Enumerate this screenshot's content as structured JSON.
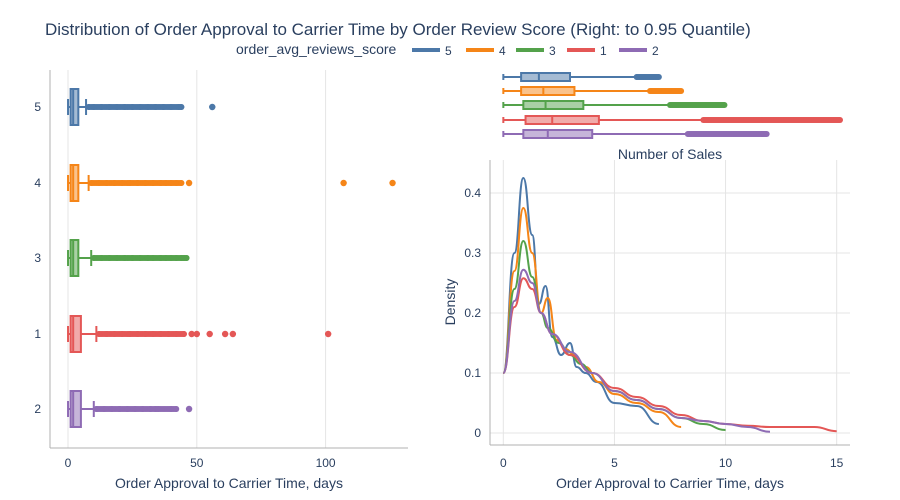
{
  "title": "Distribution of Order Approval to Carrier Time by Order Review Score (Right: to 0.95 Quantile)",
  "legend": {
    "title": "order_avg_reviews_score",
    "placement": "top-center",
    "items": [
      {
        "name": "5",
        "color": "#4c78a8"
      },
      {
        "name": "4",
        "color": "#f58518"
      },
      {
        "name": "3",
        "color": "#54a24b"
      },
      {
        "name": "1",
        "color": "#e45756"
      },
      {
        "name": "2",
        "color": "#8e6bb4"
      }
    ]
  },
  "colors": {
    "5": "#4c78a8",
    "4": "#f58518",
    "3": "#54a24b",
    "1": "#e45756",
    "2": "#8e6bb4",
    "text": "#2a3f5f",
    "grid": "#e5e5e5"
  },
  "chart_data": [
    {
      "type": "box",
      "orientation": "horizontal",
      "xlabel": "Order Approval to Carrier Time, days",
      "ylabel": "",
      "xlim": [
        -7,
        132
      ],
      "xticks": [
        0,
        50,
        100
      ],
      "categories": [
        "5",
        "4",
        "3",
        "1",
        "2"
      ],
      "grid": true,
      "series": [
        {
          "name": "5",
          "min": 0,
          "q1": 1,
          "median": 2,
          "q3": 4,
          "whisker_high": 7,
          "outliers": [
            8,
            10,
            13,
            16,
            19,
            22,
            25,
            28,
            31,
            34,
            37,
            40,
            43,
            44,
            56
          ]
        },
        {
          "name": "4",
          "min": 0,
          "q1": 1,
          "median": 2,
          "q3": 4,
          "whisker_high": 8,
          "outliers": [
            9,
            12,
            15,
            18,
            21,
            24,
            27,
            30,
            33,
            36,
            38,
            40,
            42,
            44,
            47,
            107,
            126
          ]
        },
        {
          "name": "3",
          "min": 0,
          "q1": 1,
          "median": 2,
          "q3": 4,
          "whisker_high": 9,
          "outliers": [
            10,
            13,
            16,
            19,
            22,
            25,
            28,
            31,
            33,
            36,
            38,
            40,
            42,
            44,
            45,
            46
          ]
        },
        {
          "name": "1",
          "min": 0,
          "q1": 1,
          "median": 2,
          "q3": 5,
          "whisker_high": 11,
          "outliers": [
            12,
            15,
            18,
            21,
            24,
            27,
            30,
            33,
            36,
            39,
            42,
            45,
            48,
            50,
            55,
            61,
            64,
            101
          ]
        },
        {
          "name": "2",
          "min": 0,
          "q1": 1,
          "median": 2,
          "q3": 5,
          "whisker_high": 10,
          "outliers": [
            11,
            14,
            17,
            20,
            23,
            26,
            29,
            32,
            34,
            35,
            40,
            42,
            47
          ]
        }
      ]
    },
    {
      "type": "box",
      "orientation": "horizontal",
      "xlabel": "Number of Sales",
      "xlim": [
        -0.6,
        15.6
      ],
      "categories": [
        "5",
        "4",
        "3",
        "1",
        "2"
      ],
      "series": [
        {
          "name": "5",
          "min": 0,
          "q1": 0.8,
          "median": 1.6,
          "q3": 3.0,
          "whisker_high": 6.0,
          "outliers_range": [
            6.0,
            7.0
          ]
        },
        {
          "name": "4",
          "min": 0,
          "q1": 0.8,
          "median": 1.8,
          "q3": 3.2,
          "whisker_high": 6.6,
          "outliers_range": [
            6.6,
            8.0
          ]
        },
        {
          "name": "3",
          "min": 0,
          "q1": 0.9,
          "median": 1.9,
          "q3": 3.6,
          "whisker_high": 7.5,
          "outliers_range": [
            7.5,
            10.0
          ]
        },
        {
          "name": "1",
          "min": 0,
          "q1": 1.0,
          "median": 2.2,
          "q3": 4.3,
          "whisker_high": 9.0,
          "outliers_range": [
            9.0,
            15.2
          ]
        },
        {
          "name": "2",
          "min": 0,
          "q1": 0.9,
          "median": 2.0,
          "q3": 4.0,
          "whisker_high": 8.3,
          "outliers_range": [
            8.3,
            11.9
          ]
        }
      ]
    },
    {
      "type": "line",
      "xlabel": "Order Approval to Carrier Time, days",
      "ylabel": "Density",
      "xlim": [
        -0.6,
        15.6
      ],
      "ylim": [
        -0.02,
        0.455
      ],
      "xticks": [
        0,
        5,
        10,
        15
      ],
      "yticks": [
        0,
        0.1,
        0.2,
        0.3,
        0.4
      ],
      "yticklabels": [
        "0",
        "0.1",
        "0.2",
        "0.3",
        "0.4"
      ],
      "grid": true,
      "series": [
        {
          "name": "5",
          "x": [
            0,
            0.5,
            0.9,
            1.3,
            1.6,
            1.9,
            2.2,
            2.6,
            3.0,
            3.3,
            3.7,
            4.2,
            5.0,
            6.0,
            7.0
          ],
          "y": [
            0.1,
            0.3,
            0.425,
            0.33,
            0.215,
            0.245,
            0.16,
            0.13,
            0.15,
            0.11,
            0.1,
            0.085,
            0.05,
            0.045,
            0.015
          ]
        },
        {
          "name": "4",
          "x": [
            0,
            0.5,
            0.9,
            1.3,
            1.7,
            2.0,
            2.4,
            2.8,
            3.2,
            3.7,
            4.3,
            5.0,
            6.0,
            7.0,
            8.0
          ],
          "y": [
            0.1,
            0.27,
            0.375,
            0.3,
            0.2,
            0.225,
            0.155,
            0.14,
            0.13,
            0.11,
            0.085,
            0.065,
            0.05,
            0.035,
            0.01
          ]
        },
        {
          "name": "3",
          "x": [
            0,
            0.5,
            0.9,
            1.3,
            1.7,
            2.0,
            2.5,
            3.0,
            3.5,
            4.0,
            5.0,
            6.0,
            7.0,
            8.0,
            9.0,
            10.0
          ],
          "y": [
            0.1,
            0.24,
            0.32,
            0.26,
            0.2,
            0.175,
            0.15,
            0.13,
            0.115,
            0.1,
            0.07,
            0.055,
            0.04,
            0.025,
            0.015,
            0.005
          ]
        },
        {
          "name": "1",
          "x": [
            0,
            0.5,
            0.9,
            1.3,
            1.7,
            2.2,
            3.0,
            4.0,
            5.0,
            6.0,
            7.0,
            8.0,
            9.0,
            10.0,
            11.0,
            12.0,
            13.0,
            14.0,
            15.0
          ],
          "y": [
            0.1,
            0.21,
            0.258,
            0.24,
            0.2,
            0.165,
            0.13,
            0.1,
            0.075,
            0.06,
            0.045,
            0.03,
            0.02,
            0.015,
            0.012,
            0.01,
            0.01,
            0.01,
            0.003
          ]
        },
        {
          "name": "2",
          "x": [
            0,
            0.5,
            0.9,
            1.3,
            1.7,
            2.2,
            3.0,
            4.0,
            5.0,
            6.0,
            7.0,
            8.0,
            9.0,
            10.0,
            11.0,
            12.0
          ],
          "y": [
            0.1,
            0.22,
            0.272,
            0.25,
            0.2,
            0.165,
            0.135,
            0.1,
            0.07,
            0.055,
            0.04,
            0.025,
            0.02,
            0.015,
            0.01,
            0.002
          ]
        }
      ]
    }
  ]
}
